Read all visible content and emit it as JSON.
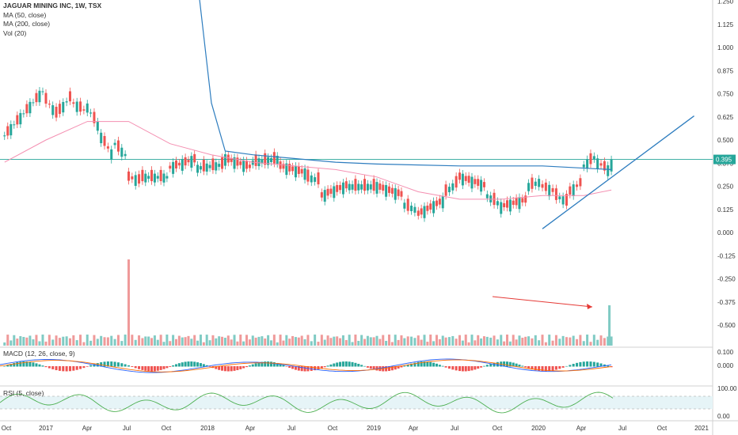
{
  "legend": {
    "title": "JAGUAR MINING INC, 1W, TSX",
    "ma50": "MA (50, close)",
    "ma200": "MA (200, close)",
    "vol": "Vol (20)"
  },
  "macd_label": "MACD (12, 26, close, 9)",
  "rsi_label": "RSI (5, close)",
  "last_price_label": "0.395",
  "colors": {
    "up": "#26a69a",
    "down": "#ef5350",
    "ma50": "#f48fb1",
    "ma200": "#2e7dbf",
    "trendline": "#2e7dbf",
    "rsi": "#4caf50",
    "arrow": "#e53935"
  },
  "chart_data": {
    "type": "candlestick",
    "price_axis_ticks": [
      "1.250",
      "1.125",
      "1.000",
      "0.875",
      "0.750",
      "0.625",
      "0.500",
      "0.375",
      "0.250",
      "0.125",
      "0.000",
      "-0.125",
      "-0.250",
      "-0.375",
      "-0.500"
    ],
    "time_axis_ticks": [
      "Oct",
      "2017",
      "Apr",
      "Jul",
      "Oct",
      "2018",
      "Apr",
      "Jul",
      "Oct",
      "2019",
      "Apr",
      "Jul",
      "Oct",
      "2020",
      "Apr",
      "Jul",
      "Oct",
      "2021"
    ],
    "macd_axis_ticks": [
      "0.100",
      "0.000"
    ],
    "rsi_axis_ticks": [
      "100.00",
      "0.00"
    ],
    "series": [
      {
        "name": "Price",
        "points": [
          [
            "2016-10",
            0.55,
            0.52
          ],
          [
            "2017-01",
            0.78,
            0.72
          ],
          [
            "2017-02",
            0.62,
            0.66
          ],
          [
            "2017-03",
            0.75,
            0.7
          ],
          [
            "2017-04",
            0.65,
            0.68
          ],
          [
            "2017-05",
            0.55,
            0.52
          ],
          [
            "2017-06",
            0.4,
            0.48
          ],
          [
            "2017-07",
            0.4,
            0.3
          ],
          [
            "2017-08",
            0.28,
            0.3
          ],
          [
            "2017-10",
            0.3,
            0.35
          ],
          [
            "2017-12",
            0.4,
            0.35
          ],
          [
            "2018-02",
            0.37,
            0.4
          ],
          [
            "2018-04",
            0.35,
            0.38
          ],
          [
            "2018-06",
            0.4,
            0.36
          ],
          [
            "2018-08",
            0.32,
            0.3
          ],
          [
            "2018-09",
            0.28,
            0.2
          ],
          [
            "2018-11",
            0.26,
            0.25
          ],
          [
            "2019-01",
            0.25,
            0.25
          ],
          [
            "2019-03",
            0.2,
            0.15
          ],
          [
            "2019-04",
            0.12,
            0.1
          ],
          [
            "2019-06",
            0.18,
            0.22
          ],
          [
            "2019-07",
            0.28,
            0.3
          ],
          [
            "2019-09",
            0.25,
            0.2
          ],
          [
            "2019-10",
            0.15,
            0.14
          ],
          [
            "2019-12",
            0.18,
            0.25
          ],
          [
            "2020-01",
            0.28,
            0.25
          ],
          [
            "2020-02",
            0.22,
            0.2
          ],
          [
            "2020-03",
            0.16,
            0.22
          ],
          [
            "2020-04",
            0.28,
            0.36
          ],
          [
            "2020-05",
            0.42,
            0.38
          ],
          [
            "2020-06",
            0.33,
            0.395
          ]
        ]
      },
      {
        "name": "MA (50, close)",
        "points": [
          [
            "2016-10",
            0.38
          ],
          [
            "2017-01",
            0.5
          ],
          [
            "2017-04",
            0.6
          ],
          [
            "2017-07",
            0.6
          ],
          [
            "2017-10",
            0.48
          ],
          [
            "2018-01",
            0.42
          ],
          [
            "2018-04",
            0.38
          ],
          [
            "2018-07",
            0.36
          ],
          [
            "2018-10",
            0.34
          ],
          [
            "2019-01",
            0.3
          ],
          [
            "2019-04",
            0.22
          ],
          [
            "2019-07",
            0.18
          ],
          [
            "2019-10",
            0.18
          ],
          [
            "2020-01",
            0.2
          ],
          [
            "2020-04",
            0.2
          ],
          [
            "2020-06",
            0.23
          ]
        ]
      },
      {
        "name": "MA (200, close)",
        "points": [
          [
            "2017-12",
            1.35
          ],
          [
            "2018-01",
            0.7
          ],
          [
            "2018-02",
            0.44
          ],
          [
            "2018-04",
            0.42
          ],
          [
            "2018-07",
            0.4
          ],
          [
            "2018-10",
            0.38
          ],
          [
            "2019-01",
            0.37
          ],
          [
            "2019-07",
            0.36
          ],
          [
            "2020-01",
            0.36
          ],
          [
            "2020-06",
            0.34
          ]
        ]
      }
    ],
    "trendline": {
      "start": [
        "2020-01",
        0.02
      ],
      "end": [
        "2020-12",
        0.63
      ]
    }
  }
}
